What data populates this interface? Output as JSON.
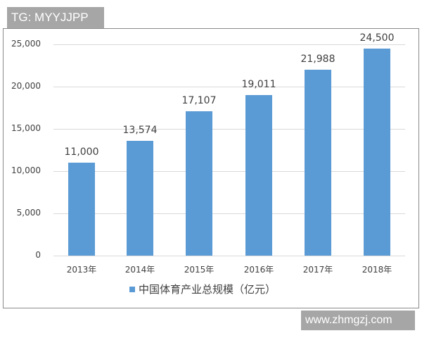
{
  "watermarks": {
    "top": "TG: MYYJJPP",
    "bottom": "www.zhmgzj.com"
  },
  "colors": {
    "bar": "#5b9bd5",
    "gridline": "#d9d9d9",
    "text": "#404040",
    "watermark_bg": "#a6a6a6"
  },
  "chart_data": {
    "type": "bar",
    "title": "",
    "xlabel": "",
    "ylabel": "",
    "categories": [
      "2013年",
      "2014年",
      "2015年",
      "2016年",
      "2017年",
      "2018年"
    ],
    "series": [
      {
        "name": "中国体育产业总规模（亿元）",
        "values": [
          11000,
          13574,
          17107,
          19011,
          21988,
          24500
        ]
      }
    ],
    "data_labels": [
      "11,000",
      "13,574",
      "17,107",
      "19,011",
      "21,988",
      "24,500"
    ],
    "yticks": [
      "0",
      "5,000",
      "10,000",
      "15,000",
      "20,000",
      "25,000"
    ],
    "ytick_values": [
      0,
      5000,
      10000,
      15000,
      20000,
      25000
    ],
    "ylim": [
      0,
      25000
    ],
    "grid": true,
    "legend_position": "bottom"
  }
}
